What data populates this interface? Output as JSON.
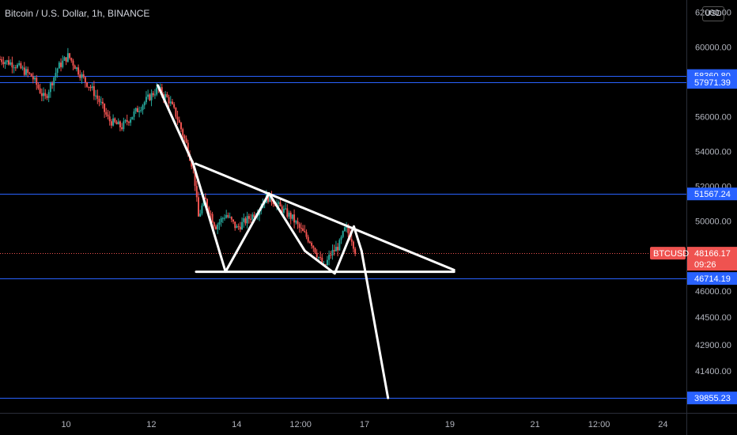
{
  "header": {
    "symbol_title": "Bitcoin / U.S. Dollar, 1h, BINANCE",
    "currency": "USD"
  },
  "colors": {
    "background": "#000000",
    "bull_candle": "#26a69a",
    "bear_candle": "#ef5350",
    "horizontal_level": "#2962ff",
    "level_tag": "#2962ff",
    "last_price_tag": "#ef5350",
    "drawing": "#ffffff"
  },
  "chart_data": {
    "type": "candlestick",
    "title": "Bitcoin / U.S. Dollar, 1h, BINANCE",
    "y_axis": {
      "side": "right",
      "range": [
        39000,
        62700
      ],
      "ticks": [
        {
          "value": 62000,
          "label": "62000.00"
        },
        {
          "value": 60000,
          "label": "60000.00"
        },
        {
          "value": 56000,
          "label": "56000.00"
        },
        {
          "value": 54000,
          "label": "54000.00"
        },
        {
          "value": 52000,
          "label": "52000.00"
        },
        {
          "value": 50000,
          "label": "50000.00"
        },
        {
          "value": 46000,
          "label": "46000.00"
        },
        {
          "value": 44500,
          "label": "44500.00"
        },
        {
          "value": 42900,
          "label": "42900.00"
        },
        {
          "value": 41400,
          "label": "41400.00"
        }
      ]
    },
    "x_axis": {
      "range_days": [
        8.45,
        24.4
      ],
      "ticks": [
        {
          "value": 10,
          "label": "10"
        },
        {
          "value": 12,
          "label": "12"
        },
        {
          "value": 14,
          "label": "14"
        },
        {
          "value": 15.5,
          "label": "12:00"
        },
        {
          "value": 17,
          "label": "17"
        },
        {
          "value": 19,
          "label": "19"
        },
        {
          "value": 21,
          "label": "21"
        },
        {
          "value": 22.5,
          "label": "12:00"
        },
        {
          "value": 24,
          "label": "24"
        }
      ]
    },
    "horizontal_levels": [
      {
        "value": 58360.8,
        "label": "58360.80"
      },
      {
        "value": 57971.39,
        "label": "57971.39"
      },
      {
        "value": 51567.24,
        "label": "51567.24"
      },
      {
        "value": 46714.19,
        "label": "46714.19"
      },
      {
        "value": 39855.23,
        "label": "39855.23"
      }
    ],
    "last_price": {
      "value": 48166.17,
      "label": "48166.17",
      "countdown": "09:26",
      "symbol": "BTCUSD"
    },
    "price_path": [
      [
        8.45,
        59300
      ],
      [
        8.8,
        59000
      ],
      [
        9.2,
        58300
      ],
      [
        9.5,
        57000
      ],
      [
        9.8,
        58800
      ],
      [
        10.05,
        59500
      ],
      [
        10.4,
        58200
      ],
      [
        10.6,
        57600
      ],
      [
        10.8,
        56800
      ],
      [
        11.0,
        55800
      ],
      [
        11.3,
        55400
      ],
      [
        11.6,
        56200
      ],
      [
        11.9,
        57000
      ],
      [
        12.15,
        57600
      ],
      [
        12.4,
        57000
      ],
      [
        12.6,
        56000
      ],
      [
        12.85,
        54200
      ],
      [
        13.0,
        52800
      ],
      [
        13.1,
        50200
      ],
      [
        13.25,
        51300
      ],
      [
        13.5,
        49700
      ],
      [
        13.75,
        50400
      ],
      [
        14.0,
        49600
      ],
      [
        14.25,
        50100
      ],
      [
        14.5,
        50600
      ],
      [
        14.7,
        51400
      ],
      [
        14.85,
        51200
      ],
      [
        15.05,
        50700
      ],
      [
        15.3,
        50200
      ],
      [
        15.5,
        49500
      ],
      [
        15.75,
        48800
      ],
      [
        15.95,
        47800
      ],
      [
        16.05,
        47300
      ],
      [
        16.2,
        48100
      ],
      [
        16.4,
        48600
      ],
      [
        16.55,
        49600
      ],
      [
        16.7,
        49000
      ],
      [
        16.8,
        48166
      ]
    ],
    "drawings": {
      "triangle_upper_line": [
        [
          13.04,
          53300
        ],
        [
          19.1,
          47200
        ]
      ],
      "triangle_base_line": [
        [
          13.05,
          47100
        ],
        [
          19.1,
          47100
        ]
      ],
      "w_pattern": [
        [
          12.15,
          57800
        ],
        [
          12.98,
          53300
        ],
        [
          13.74,
          47100
        ],
        [
          14.76,
          51600
        ],
        [
          15.6,
          48300
        ],
        [
          16.3,
          47000
        ],
        [
          16.75,
          49700
        ],
        [
          16.93,
          48300
        ]
      ],
      "projection": [
        [
          16.93,
          48300
        ],
        [
          17.55,
          39855
        ]
      ]
    }
  }
}
